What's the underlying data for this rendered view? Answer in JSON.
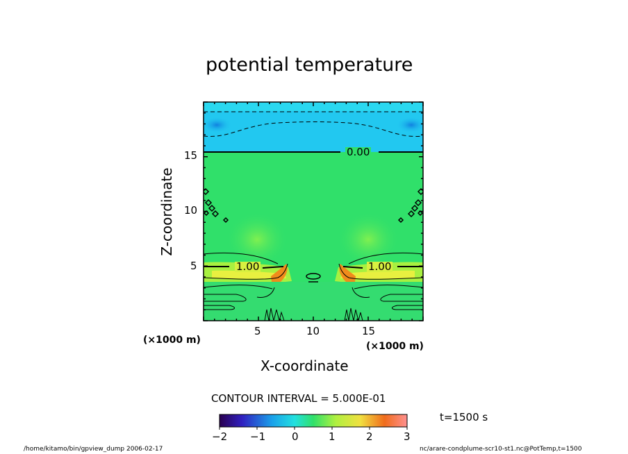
{
  "chart_data": {
    "type": "heatmap",
    "title": "potential temperature",
    "xlabel": "X-coordinate",
    "ylabel": "Z-coordinate",
    "x_unit": "(×1000 m)",
    "y_unit": "(×1000 m)",
    "xlim": [
      0,
      20
    ],
    "ylim": [
      0,
      20
    ],
    "x_ticks": [
      "5",
      "10",
      "15"
    ],
    "y_ticks": [
      "5",
      "10",
      "15"
    ],
    "contour_interval": "CONTOUR INTERVAL = 5.000E-01",
    "contour_labels": [
      "0.00",
      "1.00",
      "1.00"
    ],
    "colorbar": {
      "range": [
        -2,
        3
      ],
      "ticks": [
        "−2",
        "−1",
        "0",
        "1",
        "2",
        "3"
      ]
    },
    "time_label": "t=1500 s",
    "footer_left": "/home/kitamo/bin/gpview_dump  2006-02-17",
    "footer_right": "nc/arare-condplume-scr10-st1.nc@PotTemp,t=1500",
    "colors": {
      "upper_layer": "#22c8f0",
      "upper_core": "#1aa0ea",
      "interior": "#30e06a",
      "warm_band": "#e8f040",
      "hot_core": "#f08c1c"
    }
  }
}
